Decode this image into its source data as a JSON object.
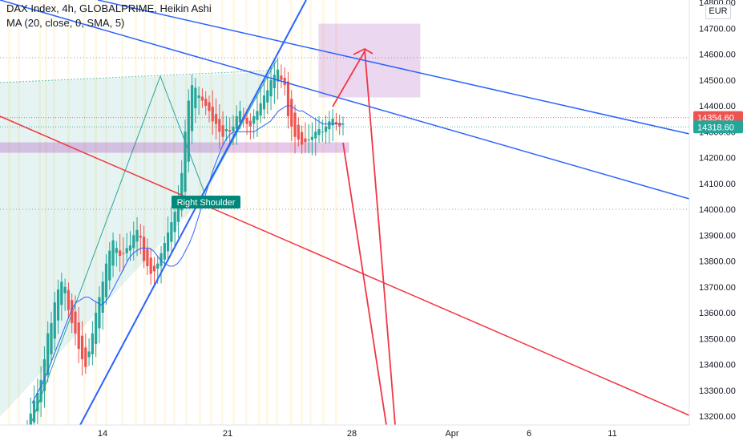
{
  "header": {
    "title": "DAX Index, 4h, GLOBALPRIME, Heikin Ashi",
    "indicator": "MA (20, close, 0, SMA, 5)",
    "currency": "EUR"
  },
  "colors": {
    "bull": "#26a69a",
    "bear": "#ef5350",
    "ma_line": "#2962ff",
    "trend_blue": "#2962ff",
    "trend_red": "#f23645",
    "zone": "#9c27b0",
    "shaded": "#26a69a",
    "price_red_label": "#ef5350",
    "price_green_label": "#26a69a"
  },
  "annotation": {
    "label": "Right Shoulder"
  },
  "price_labels": [
    {
      "text": "14354.60",
      "value": 14354.6,
      "kind": "bear"
    },
    {
      "text": "14318.60",
      "value": 14318.6,
      "kind": "bull"
    }
  ],
  "chart_data": {
    "type": "candlestick",
    "ylim": [
      13140,
      14830
    ],
    "y_ticks": [
      "13200.00",
      "13300.00",
      "13400.00",
      "13500.00",
      "13600.00",
      "13700.00",
      "13800.00",
      "13900.00",
      "14000.00",
      "14100.00",
      "14200.00",
      "14300.00",
      "14400.00",
      "14500.00",
      "14600.00",
      "14700.00",
      "14800.00"
    ],
    "x_ticks": [
      "14",
      "21",
      "28",
      "Apr",
      "6",
      "11"
    ],
    "series": [
      {
        "name": "Heikin Ashi",
        "closes": [
          13160,
          13210,
          13260,
          13290,
          13340,
          13420,
          13520,
          13560,
          13640,
          13690,
          13720,
          13700,
          13610,
          13560,
          13520,
          13460,
          13420,
          13390,
          13450,
          13520,
          13600,
          13660,
          13720,
          13790,
          13840,
          13880,
          13850,
          13820,
          13830,
          13850,
          13860,
          13900,
          13920,
          13890,
          13800,
          13780,
          13750,
          13760,
          13790,
          13830,
          13870,
          13910,
          13950,
          13990,
          14040,
          14140,
          14300,
          14420,
          14480,
          14470,
          14440,
          14420,
          14400,
          14380,
          14340,
          14330,
          14300,
          14280,
          14310,
          14300,
          14320,
          14360,
          14380,
          14350,
          14330,
          14320,
          14360,
          14380,
          14410,
          14440,
          14460,
          14500,
          14520,
          14540,
          14500,
          14480,
          14360,
          14320,
          14280,
          14270,
          14250,
          14260,
          14270,
          14280,
          14300,
          14310,
          14300,
          14320,
          14340,
          14350,
          14330,
          14320,
          14330
        ]
      },
      {
        "name": "MA (20, close, 0, SMA, 5)",
        "values": [
          13250,
          13280,
          13310,
          13340,
          13380,
          13420,
          13460,
          13500,
          13540,
          13580,
          13620,
          13640,
          13650,
          13660,
          13660,
          13650,
          13640,
          13630,
          13640,
          13660,
          13690,
          13720,
          13750,
          13780,
          13810,
          13830,
          13840,
          13850,
          13850,
          13850,
          13840,
          13820,
          13800,
          13790,
          13780,
          13780,
          13790,
          13810,
          13840,
          13870,
          13910,
          13960,
          14010,
          14060,
          14110,
          14160,
          14200,
          14240,
          14270,
          14290,
          14300,
          14300,
          14300,
          14300,
          14300,
          14300,
          14310,
          14320,
          14330,
          14340,
          14360,
          14380,
          14390,
          14400,
          14400,
          14390,
          14380,
          14380,
          14370,
          14360,
          14350,
          14340,
          14330,
          14330,
          14330,
          14330,
          14330,
          14330
        ]
      }
    ]
  }
}
